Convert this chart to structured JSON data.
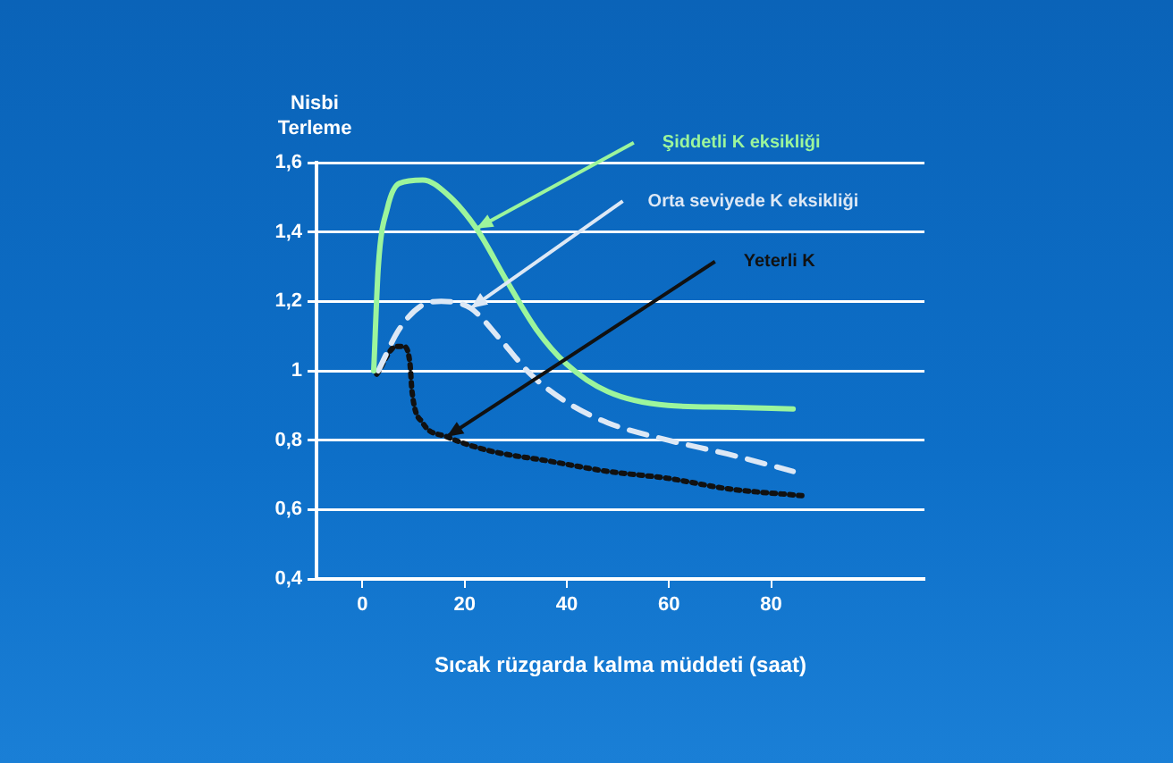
{
  "chart_data": {
    "type": "line",
    "xlabel": "Sıcak rüzgarda kalma müddeti (saat)",
    "ylabel": "Nisbi Terleme",
    "xlim": [
      -9,
      110
    ],
    "xticks": [
      0,
      20,
      40,
      60,
      80
    ],
    "ylim": [
      0.4,
      1.6
    ],
    "yticks": [
      {
        "value": 0.4,
        "label": "0,4"
      },
      {
        "value": 0.6,
        "label": "0,6"
      },
      {
        "value": 0.8,
        "label": "0,8"
      },
      1,
      {
        "value": 1.2,
        "label": "1,2"
      },
      {
        "value": 1.4,
        "label": "1,4"
      },
      {
        "value": 1.6,
        "label": "1,6"
      }
    ],
    "grid": "y",
    "legend": false,
    "marker": "none",
    "series": [
      {
        "name": "Şiddetli K eksikliği",
        "color": "#9cf59c",
        "line_style": "solid",
        "x": [
          2.2,
          3.1,
          4.9,
          7.2,
          11.8,
          16.5,
          22.3,
          28.2,
          34,
          39.9,
          48,
          59.8,
          71.5,
          84.3
        ],
        "values": [
          1.0,
          1.3,
          1.47,
          1.54,
          1.55,
          1.51,
          1.41,
          1.26,
          1.12,
          1.02,
          0.94,
          0.9,
          0.895,
          0.89
        ]
      },
      {
        "name": "Orta seviyede K eksikliği",
        "color": "#dde8f5",
        "line_style": "dashed",
        "x": [
          3.1,
          7.2,
          11.8,
          15.4,
          21.2,
          27,
          32.9,
          39.9,
          48,
          59.8,
          71.5,
          84.3
        ],
        "values": [
          1.0,
          1.12,
          1.19,
          1.2,
          1.18,
          1.09,
          0.99,
          0.91,
          0.85,
          0.8,
          0.76,
          0.71
        ]
      },
      {
        "name": "Yeterli K",
        "color": "#111111",
        "line_style": "dotted",
        "x": [
          2.8,
          6.6,
          8.1,
          9.3,
          9.7,
          11.8,
          16.5,
          24.7,
          36.4,
          48,
          59.8,
          71.5,
          86
        ],
        "values": [
          0.99,
          1.07,
          1.07,
          1.02,
          0.94,
          0.85,
          0.81,
          0.77,
          0.74,
          0.71,
          0.69,
          0.66,
          0.64
        ]
      }
    ]
  }
}
